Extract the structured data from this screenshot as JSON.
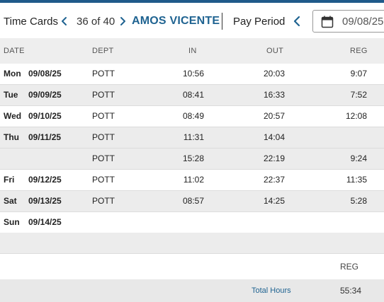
{
  "header": {
    "title": "Time Cards",
    "record_position": "36 of 40",
    "employee_name": "AMOS VICENTE",
    "pay_period_label": "Pay Period",
    "pay_period_date": "09/08/25",
    "accent_color": "#1f5a8a",
    "link_color": "#1f6391"
  },
  "columns": {
    "date": "DATE",
    "dept": "DEPT",
    "in": "IN",
    "out": "OUT",
    "reg": "REG"
  },
  "rows": [
    {
      "day": "Mon",
      "date": "09/08/25",
      "dept": "POTT",
      "in": "10:56",
      "out": "20:03",
      "reg": "9:07"
    },
    {
      "day": "Tue",
      "date": "09/09/25",
      "dept": "POTT",
      "in": "08:41",
      "out": "16:33",
      "reg": "7:52"
    },
    {
      "day": "Wed",
      "date": "09/10/25",
      "dept": "POTT",
      "in": "08:49",
      "out": "20:57",
      "reg": "12:08"
    },
    {
      "day": "Thu",
      "date": "09/11/25",
      "dept": "POTT",
      "in": "11:31",
      "out": "14:04",
      "reg": ""
    },
    {
      "day": "",
      "date": "",
      "dept": "POTT",
      "in": "15:28",
      "out": "22:19",
      "reg": "9:24"
    },
    {
      "day": "Fri",
      "date": "09/12/25",
      "dept": "POTT",
      "in": "11:02",
      "out": "22:37",
      "reg": "11:35"
    },
    {
      "day": "Sat",
      "date": "09/13/25",
      "dept": "POTT",
      "in": "08:57",
      "out": "14:25",
      "reg": "5:28"
    },
    {
      "day": "Sun",
      "date": "09/14/25",
      "dept": "",
      "in": "",
      "out": "",
      "reg": ""
    }
  ],
  "summary": {
    "reg_header": "REG",
    "total_label": "Total Hours",
    "total_reg": "55:34"
  },
  "icons": {
    "prev": "chevron-left-icon",
    "next": "chevron-right-icon",
    "calendar": "calendar-icon"
  }
}
